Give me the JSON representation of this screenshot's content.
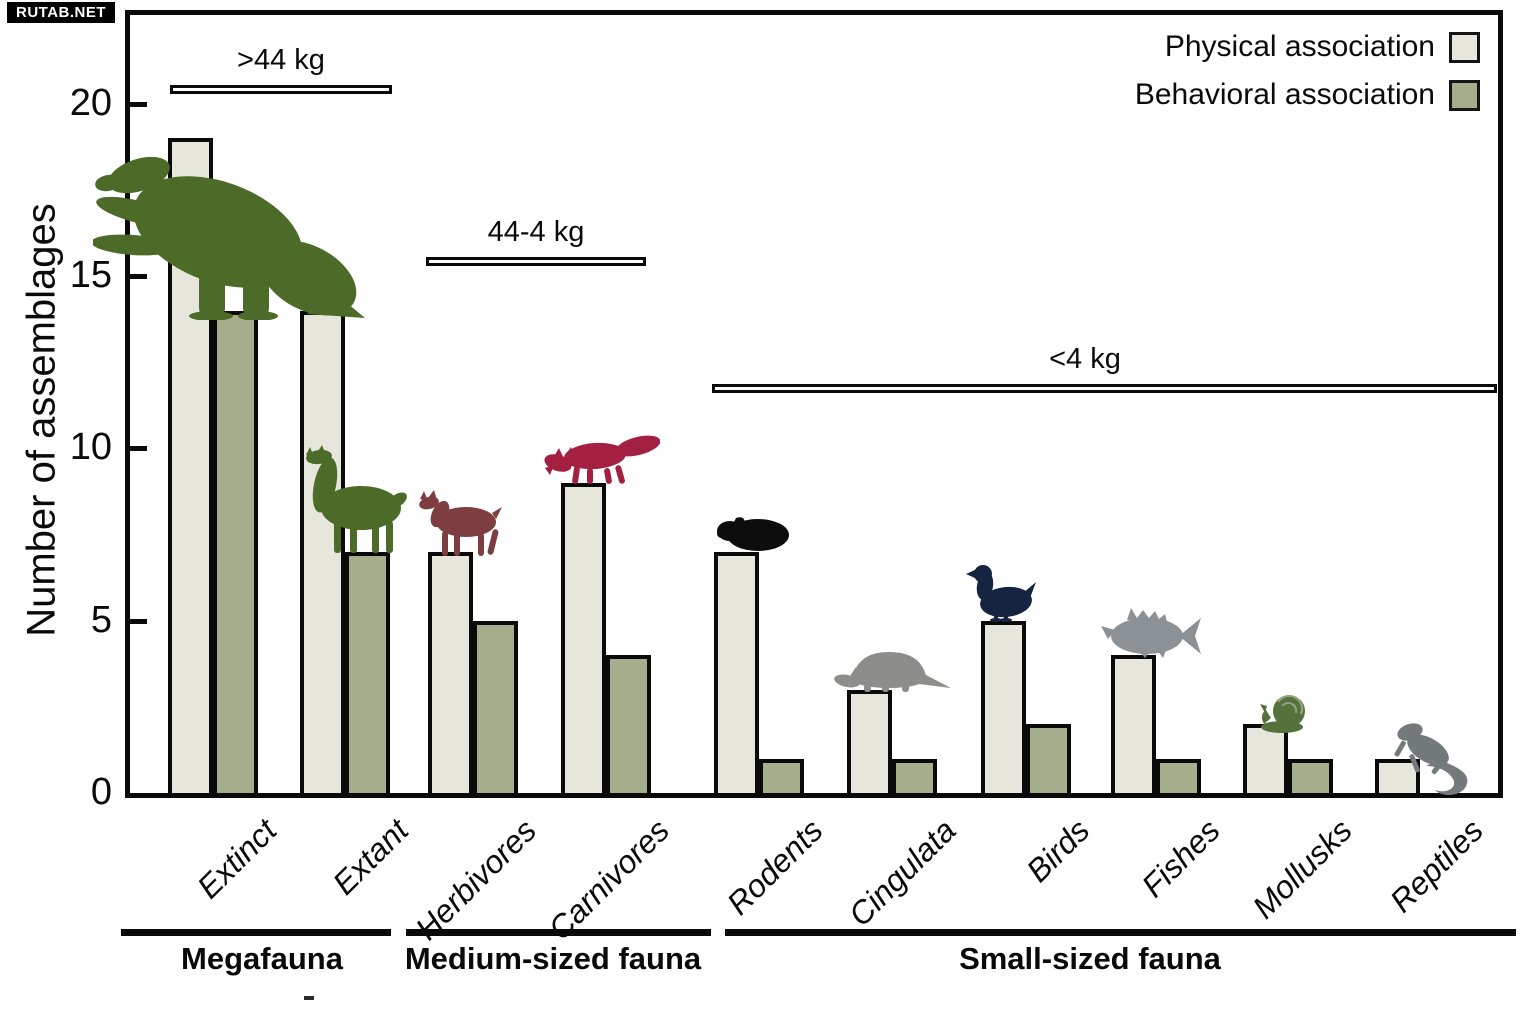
{
  "watermark": {
    "text": "RUTAB.NET"
  },
  "chart_data": {
    "type": "bar",
    "title": "",
    "xlabel": "",
    "ylabel": "Number of assemblages",
    "ylim": [
      0,
      22
    ],
    "yticks": [
      0,
      5,
      10,
      15,
      20
    ],
    "grid": false,
    "legend_position": "top-right",
    "categories": [
      "Extinct",
      "Extant",
      "Herbivores",
      "Carnivores",
      "Rodents",
      "Cingulata",
      "Birds",
      "Fishes",
      "Mollusks",
      "Reptiles"
    ],
    "series": [
      {
        "name": "Physical association",
        "color": "#e7e6dc",
        "values": [
          19,
          14,
          7,
          9,
          7,
          3,
          5,
          4,
          2,
          1
        ]
      },
      {
        "name": "Behavioral association",
        "color": "#a4ae8c",
        "values": [
          14,
          7,
          5,
          4,
          1,
          1,
          2,
          1,
          1,
          0
        ]
      }
    ],
    "bar_border_color": "#0a0a0a",
    "axis_color": "#0a0a0a",
    "groups": [
      {
        "label": "Megafauna",
        "categories": [
          "Extinct",
          "Extant"
        ]
      },
      {
        "label": "Medium-sized fauna",
        "categories": [
          "Herbivores",
          "Carnivores"
        ]
      },
      {
        "label": "Small-sized fauna",
        "categories": [
          "Rodents",
          "Cingulata",
          "Birds",
          "Fishes",
          "Mollusks",
          "Reptiles"
        ]
      }
    ],
    "size_brackets": [
      {
        "label": ">44 kg",
        "over": "Megafauna"
      },
      {
        "label": "44-4 kg",
        "over": "Medium-sized fauna"
      },
      {
        "label": "<4 kg",
        "over": "Small-sized fauna"
      }
    ],
    "silhouettes": [
      {
        "category": "Extinct",
        "icon": "ground-sloth-icon",
        "animal": "giant ground sloth",
        "color": "#4c6b28"
      },
      {
        "category": "Extant",
        "icon": "llama-icon",
        "animal": "guanaco",
        "color": "#4c6b28"
      },
      {
        "category": "Herbivores",
        "icon": "deer-icon",
        "animal": "huemul deer",
        "color": "#7e3d40"
      },
      {
        "category": "Carnivores",
        "icon": "fox-icon",
        "animal": "fox",
        "color": "#a42043"
      },
      {
        "category": "Rodents",
        "icon": "guinea-pig-icon",
        "animal": "guinea pig",
        "color": "#0d0d0d"
      },
      {
        "category": "Cingulata",
        "icon": "armadillo-icon",
        "animal": "armadillo",
        "color": "#8d8d8b"
      },
      {
        "category": "Birds",
        "icon": "duck-icon",
        "animal": "duck",
        "color": "#152440"
      },
      {
        "category": "Fishes",
        "icon": "fish-icon",
        "animal": "fish",
        "color": "#8b9195"
      },
      {
        "category": "Mollusks",
        "icon": "snail-icon",
        "animal": "snail",
        "color": "#55713c"
      },
      {
        "category": "Reptiles",
        "icon": "lizard-icon",
        "animal": "lizard",
        "color": "#74797b"
      }
    ]
  }
}
